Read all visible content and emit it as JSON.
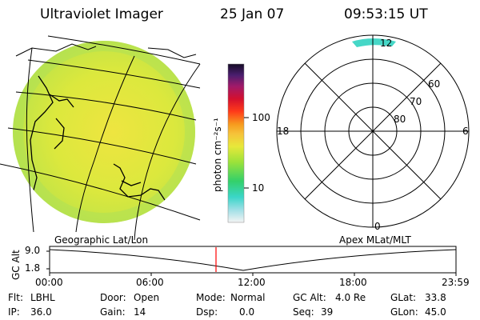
{
  "header": {
    "title": "Ultraviolet Imager",
    "date": "25 Jan 07",
    "time": "09:53:15 UT"
  },
  "colorbar": {
    "unit_label": "photon cm⁻²s⁻¹",
    "ticks": [
      "100",
      "10"
    ]
  },
  "polar_plot": {
    "mlt_labels": {
      "top": "12",
      "left": "18",
      "right": "6",
      "bottom": "0"
    },
    "lat_labels": [
      "60",
      "70",
      "80"
    ]
  },
  "strip": {
    "left_caption": "Geographic Lat/Lon",
    "right_caption": "Apex MLat/MLT",
    "y_axis_label": "GC Alt",
    "y_ticks": [
      "9.0",
      "1.8"
    ],
    "x_ticks": [
      "00:00",
      "06:00",
      "12:00",
      "18:00",
      "23:59"
    ],
    "marker_color": "#ff0000"
  },
  "info": {
    "row1": [
      {
        "label": "Flt:",
        "value": "LBHL"
      },
      {
        "label": "Door:",
        "value": "Open"
      },
      {
        "label": "Mode:",
        "value": "Normal"
      },
      {
        "label": "GC Alt:",
        "value": "4.0 Re"
      },
      {
        "label": "GLat:",
        "value": "33.8"
      }
    ],
    "row2": [
      {
        "label": "IP:",
        "value": "36.0"
      },
      {
        "label": "Gain:",
        "value": "14"
      },
      {
        "label": "Dsp:",
        "value": "0.0"
      },
      {
        "label": "Seq:",
        "value": "39"
      },
      {
        "label": "GLon:",
        "value": "45.0"
      }
    ]
  },
  "colors": {
    "disk_main": "#d8e83a",
    "disk_bright": "#e9e43a",
    "polar_spot": "#46d7c7"
  }
}
